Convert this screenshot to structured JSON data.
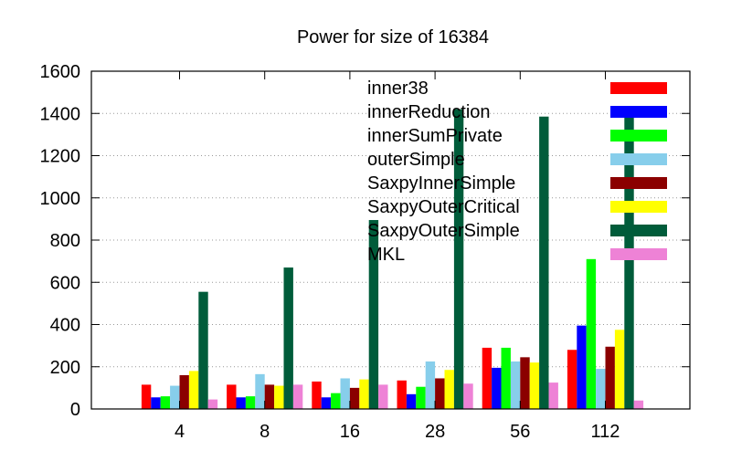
{
  "chart_data": {
    "type": "bar",
    "title": "Power for size of 16384",
    "xlabel": "",
    "ylabel": "",
    "categories": [
      "4",
      "8",
      "16",
      "28",
      "56",
      "112"
    ],
    "ylim": [
      0,
      1600
    ],
    "yticks": [
      "0",
      "200",
      "400",
      "600",
      "800",
      "1000",
      "1200",
      "1400",
      "1600"
    ],
    "grid": "horizontal dotted",
    "legend_position": "top-right inside plot",
    "series": [
      {
        "name": "inner38",
        "color": "#ff0000",
        "values": [
          115,
          115,
          130,
          135,
          290,
          280
        ]
      },
      {
        "name": "innerReduction",
        "color": "#0000ff",
        "values": [
          55,
          55,
          55,
          70,
          195,
          395
        ]
      },
      {
        "name": "innerSumPrivate",
        "color": "#00ff00",
        "values": [
          60,
          60,
          75,
          105,
          290,
          710
        ]
      },
      {
        "name": "outerSimple",
        "color": "#87ceeb",
        "values": [
          110,
          165,
          145,
          225,
          225,
          190
        ]
      },
      {
        "name": "SaxpyInnerSimple",
        "color": "#8b0000",
        "values": [
          160,
          115,
          100,
          145,
          245,
          295
        ]
      },
      {
        "name": "SaxpyOuterCritical",
        "color": "#ffff00",
        "values": [
          180,
          110,
          140,
          185,
          220,
          375
        ]
      },
      {
        "name": "SaxpyOuterSimple",
        "color": "#005c3a",
        "values": [
          555,
          670,
          895,
          1420,
          1385,
          1380
        ]
      },
      {
        "name": "MKL",
        "color": "#ee82d6",
        "values": [
          45,
          115,
          115,
          120,
          125,
          40
        ]
      }
    ]
  }
}
